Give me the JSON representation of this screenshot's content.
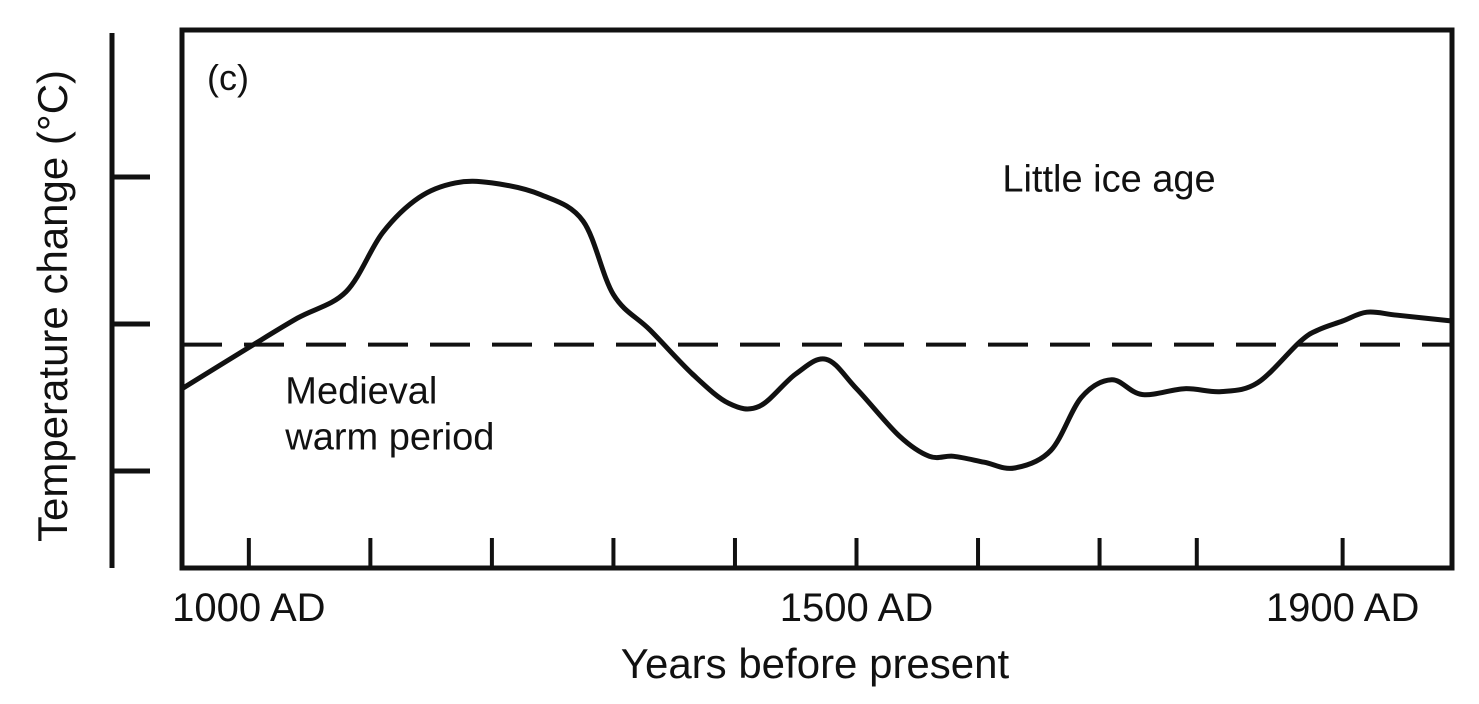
{
  "chart_data": {
    "type": "line",
    "panel_label": "(c)",
    "xlabel": "Years before present",
    "ylabel": "Temperature change (°C)",
    "xlim": [
      945,
      1990
    ],
    "ylim": [
      -0.83,
      1.0
    ],
    "x_tick_labels": [
      {
        "x": 1000,
        "label": "1000 AD"
      },
      {
        "x": 1500,
        "label": "1500 AD"
      },
      {
        "x": 1900,
        "label": "1900 AD"
      }
    ],
    "x_minor_ticks": [
      1000,
      1100,
      1200,
      1300,
      1400,
      1500,
      1600,
      1700,
      1780,
      1900
    ],
    "y_ticks": [
      -0.5,
      0.0,
      0.5
    ],
    "reference_line": {
      "y": -0.07,
      "style": "dashed"
    },
    "annotations": [
      {
        "lines": [
          "Little ice age"
        ],
        "x": 1620,
        "y": 0.45
      },
      {
        "lines": [
          "Medieval",
          "warm period"
        ],
        "x": 1030,
        "y": -0.27
      }
    ],
    "series": [
      {
        "values": [
          {
            "x": 945,
            "y": -0.22
          },
          {
            "x": 1000,
            "y": -0.08
          },
          {
            "x": 1040,
            "y": 0.02
          },
          {
            "x": 1080,
            "y": 0.11
          },
          {
            "x": 1110,
            "y": 0.31
          },
          {
            "x": 1140,
            "y": 0.43
          },
          {
            "x": 1170,
            "y": 0.48
          },
          {
            "x": 1200,
            "y": 0.48
          },
          {
            "x": 1240,
            "y": 0.44
          },
          {
            "x": 1275,
            "y": 0.35
          },
          {
            "x": 1300,
            "y": 0.1
          },
          {
            "x": 1330,
            "y": -0.02
          },
          {
            "x": 1365,
            "y": -0.17
          },
          {
            "x": 1395,
            "y": -0.27
          },
          {
            "x": 1420,
            "y": -0.28
          },
          {
            "x": 1450,
            "y": -0.17
          },
          {
            "x": 1475,
            "y": -0.12
          },
          {
            "x": 1500,
            "y": -0.22
          },
          {
            "x": 1535,
            "y": -0.38
          },
          {
            "x": 1560,
            "y": -0.45
          },
          {
            "x": 1580,
            "y": -0.45
          },
          {
            "x": 1605,
            "y": -0.47
          },
          {
            "x": 1630,
            "y": -0.49
          },
          {
            "x": 1660,
            "y": -0.43
          },
          {
            "x": 1685,
            "y": -0.25
          },
          {
            "x": 1710,
            "y": -0.19
          },
          {
            "x": 1735,
            "y": -0.24
          },
          {
            "x": 1770,
            "y": -0.22
          },
          {
            "x": 1800,
            "y": -0.23
          },
          {
            "x": 1830,
            "y": -0.2
          },
          {
            "x": 1865,
            "y": -0.06
          },
          {
            "x": 1880,
            "y": -0.02
          },
          {
            "x": 1900,
            "y": 0.01
          },
          {
            "x": 1920,
            "y": 0.04
          },
          {
            "x": 1945,
            "y": 0.03
          },
          {
            "x": 1990,
            "y": 0.01
          }
        ]
      }
    ],
    "grid": false,
    "legend": "none"
  }
}
